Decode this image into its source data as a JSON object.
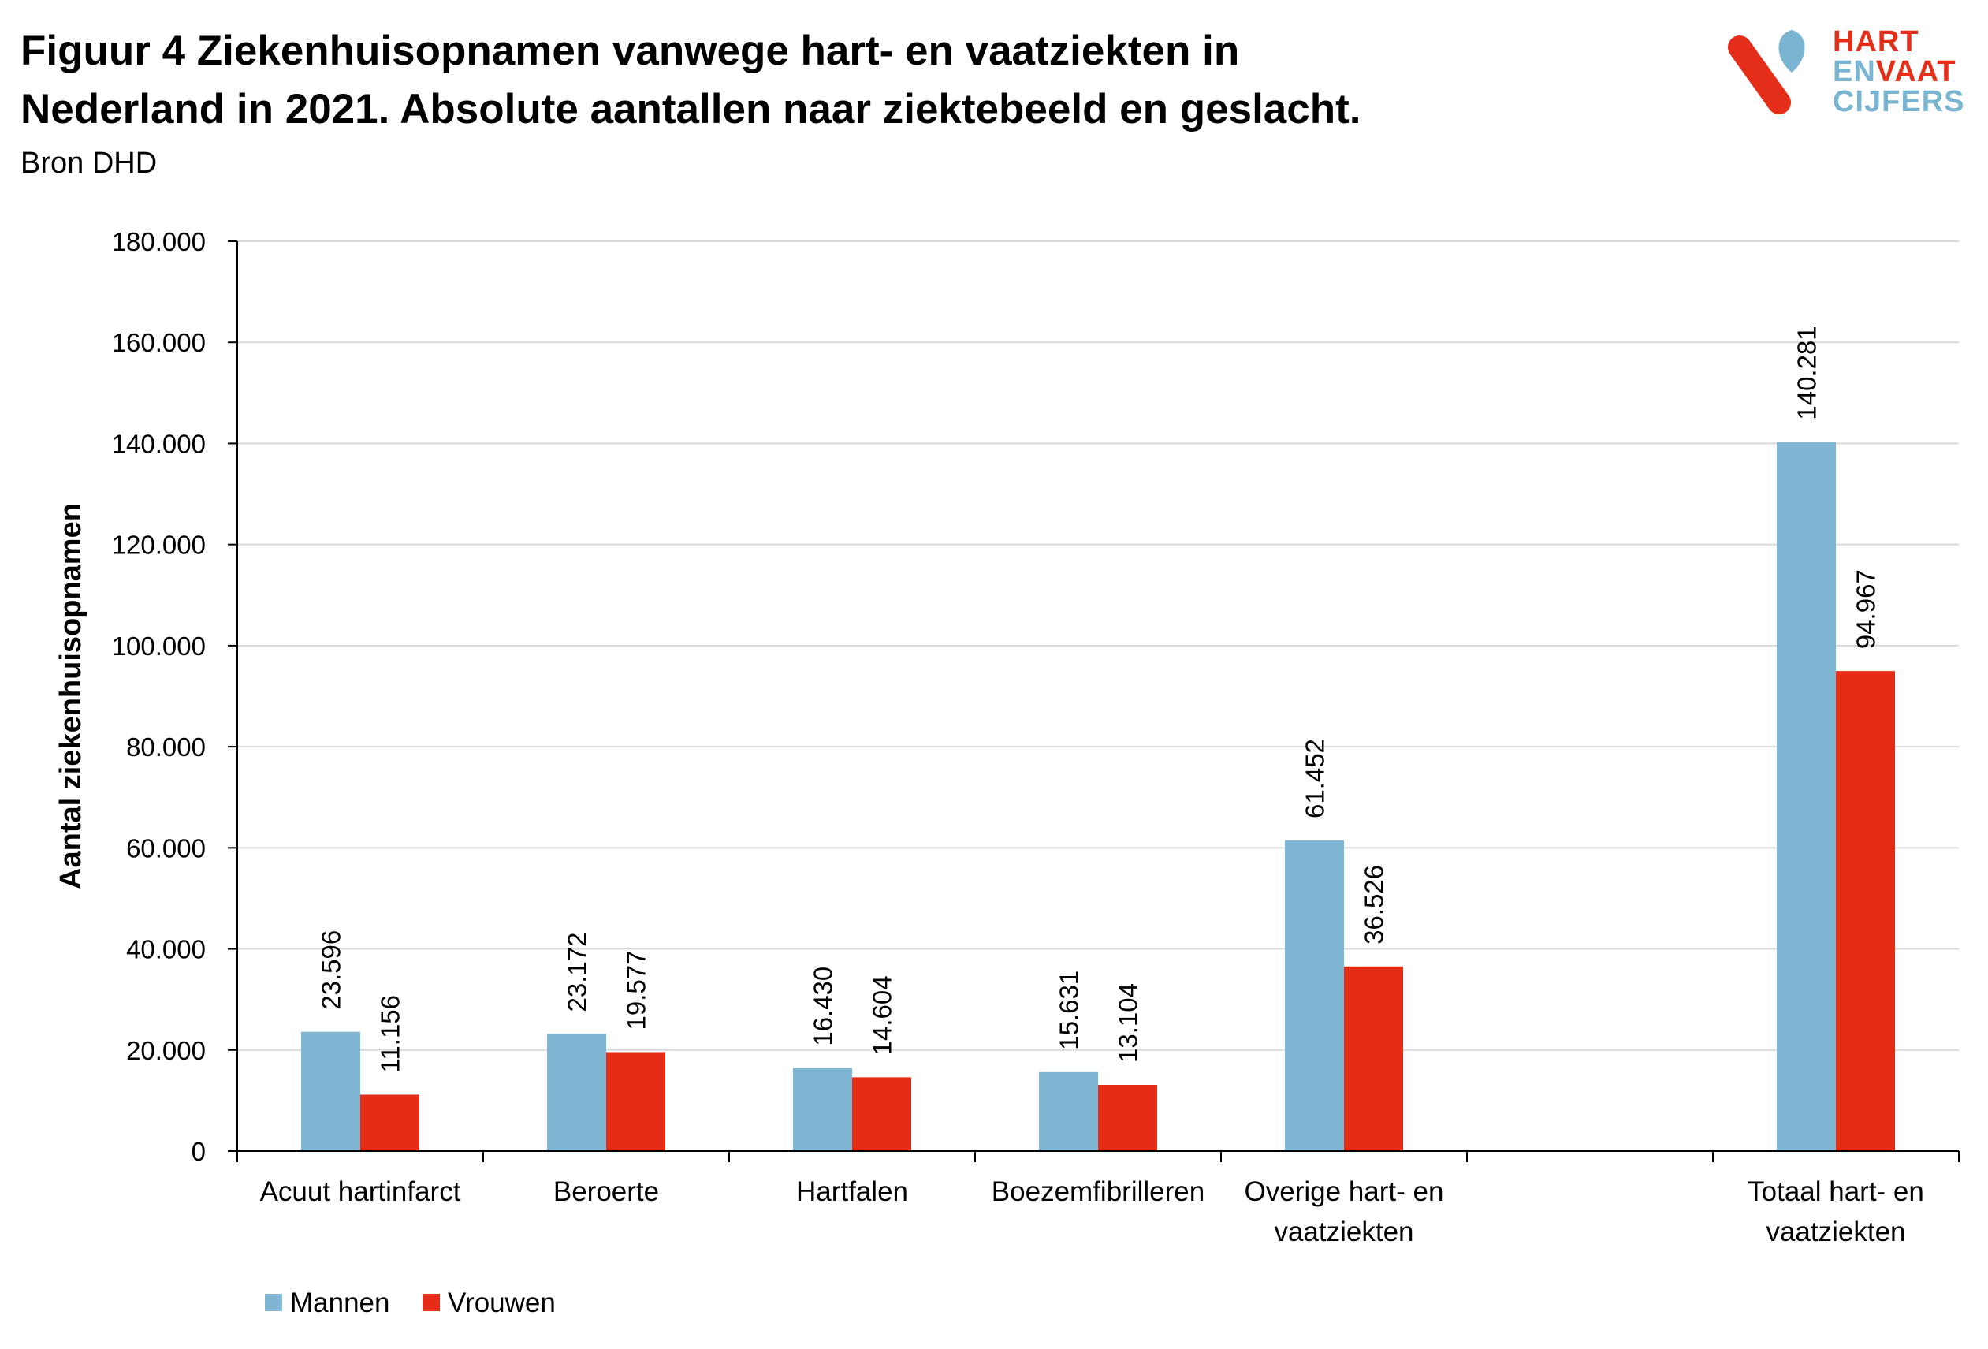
{
  "title_line1": "Figuur 4 Ziekenhuisopnamen vanwege hart- en vaatziekten in",
  "title_line2": "Nederland in 2021. Absolute aantallen naar ziektebeeld en geslacht.",
  "source": "Bron DHD",
  "logo": {
    "line1": "HART",
    "line2_a": "EN",
    "line2_b": "VAAT",
    "line3": "CIJFERS",
    "red": "#e52e1a",
    "blue": "#79b5d1"
  },
  "colors": {
    "mannen": "#7fb6d3",
    "vrouwen": "#e42c16",
    "grid": "#d9d9d9",
    "axis": "#000000"
  },
  "chart_data": {
    "type": "bar",
    "ylabel": "Aantal ziekenhuisopnamen",
    "xlabel": "",
    "ylim": [
      0,
      180000
    ],
    "yticks": [
      "0",
      "20.000",
      "40.000",
      "60.000",
      "80.000",
      "100.000",
      "120.000",
      "140.000",
      "160.000",
      "180.000"
    ],
    "grid": true,
    "legend_position": "bottom-left",
    "categories": [
      [
        "Acuut hartinfarct"
      ],
      [
        "Beroerte"
      ],
      [
        "Hartfalen"
      ],
      [
        "Boezemfibrilleren"
      ],
      [
        "Overige hart- en",
        "vaatziekten"
      ],
      [
        ""
      ],
      [
        "Totaal hart- en",
        "vaatziekten"
      ]
    ],
    "series": [
      {
        "name": "Mannen",
        "values": [
          23596,
          23172,
          16430,
          15631,
          61452,
          null,
          140281
        ],
        "labels": [
          "23.596",
          "23.172",
          "16.430",
          "15.631",
          "61.452",
          "",
          "140.281"
        ]
      },
      {
        "name": "Vrouwen",
        "values": [
          11156,
          19577,
          14604,
          13104,
          36526,
          null,
          94967
        ],
        "labels": [
          "11.156",
          "19.577",
          "14.604",
          "13.104",
          "36.526",
          "",
          "94.967"
        ]
      }
    ]
  }
}
